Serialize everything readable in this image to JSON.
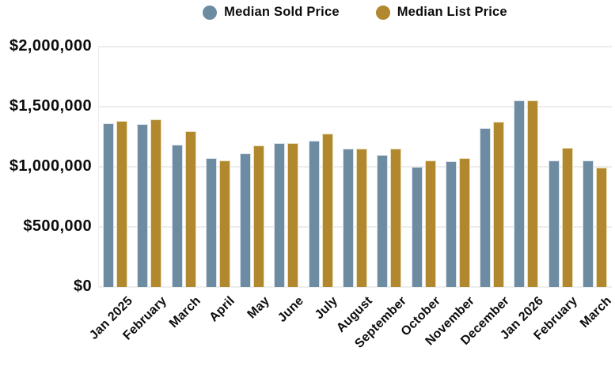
{
  "legend": [
    {
      "label": "Median Sold Price",
      "color": "#6d8ba1"
    },
    {
      "label": "Median List Price",
      "color": "#b1882e"
    }
  ],
  "chart_data": {
    "type": "bar",
    "title": "",
    "categories": [
      "Jan 2025",
      "February",
      "March",
      "April",
      "May",
      "June",
      "July",
      "August",
      "September",
      "October",
      "November",
      "December",
      "Jan 2026",
      "February",
      "March"
    ],
    "series": [
      {
        "name": "Median Sold Price",
        "color": "#6d8ba1",
        "edge_color": "#d9e3ec",
        "values": [
          1360000,
          1355000,
          1185000,
          1070000,
          1115000,
          1200000,
          1220000,
          1150000,
          1100000,
          1000000,
          1045000,
          1320000,
          1550000,
          1050000,
          1050000
        ]
      },
      {
        "name": "Median List Price",
        "color": "#b1882e",
        "edge_color": "#eadfbc",
        "values": [
          1380000,
          1395000,
          1295000,
          1050000,
          1175000,
          1195000,
          1275000,
          1150000,
          1150000,
          1055000,
          1070000,
          1375000,
          1550000,
          1155000,
          995000
        ]
      }
    ],
    "ylim": [
      0,
      2000000
    ],
    "y_ticks": [
      0,
      500000,
      1000000,
      1500000,
      2000000
    ],
    "y_tick_labels": [
      "$0",
      "$500,000",
      "$1,000,000",
      "$1,500,000",
      "$2,000,000"
    ],
    "grid": true,
    "legend_position": "top",
    "xlabel": "",
    "ylabel": ""
  }
}
